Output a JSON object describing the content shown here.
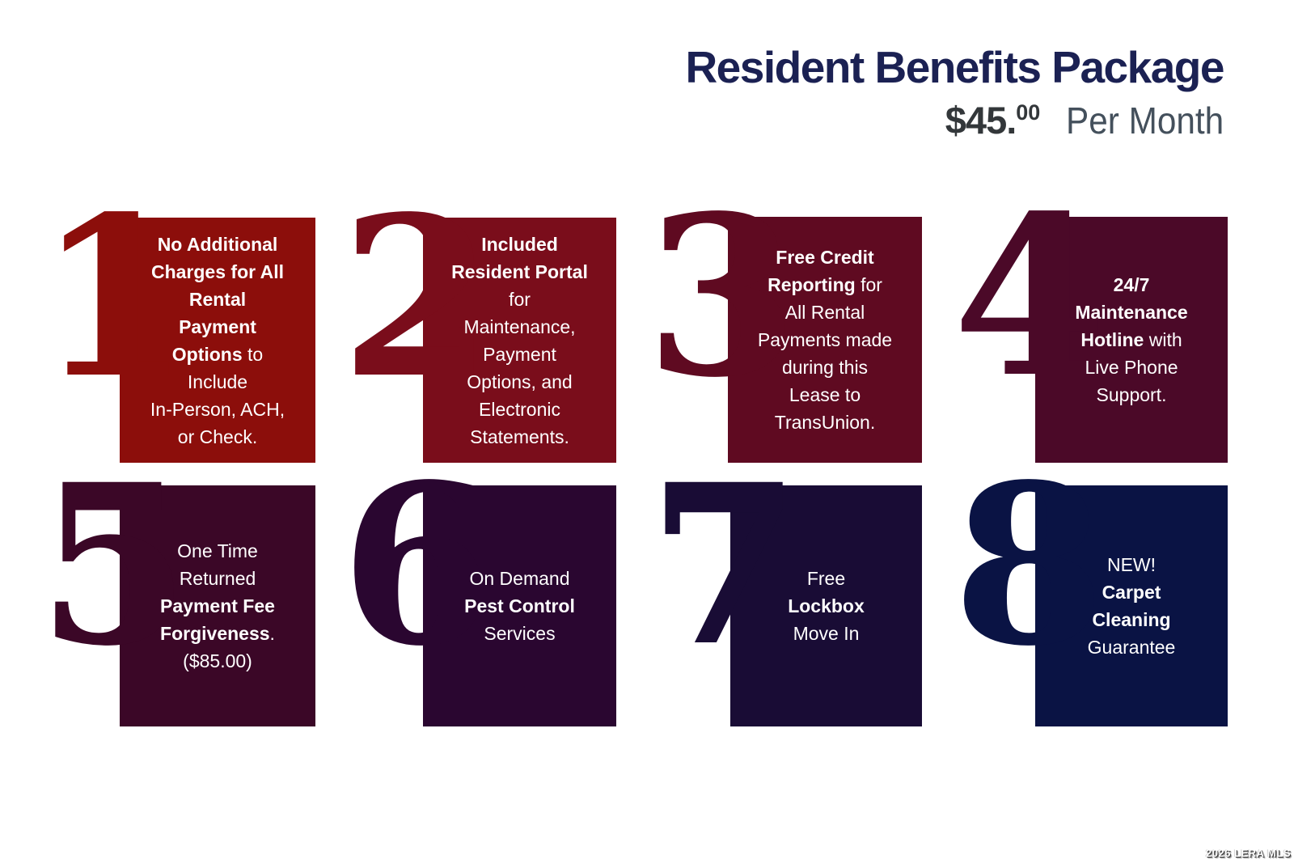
{
  "header": {
    "title": "Resident Benefits Package",
    "price_main": "$45.",
    "price_cents": "00",
    "price_suffix": "Per Month",
    "title_color": "#1b2153",
    "price_color": "#33373a",
    "suffix_color": "#44505c"
  },
  "watermark": {
    "text": "2026 LERA MLS"
  },
  "cards": [
    {
      "number": "1",
      "color": "#8c0e0b",
      "lines": [
        [
          {
            "t": "No Additional",
            "b": true
          }
        ],
        [
          {
            "t": "Charges for All",
            "b": true
          }
        ],
        [
          {
            "t": "Rental",
            "b": true
          }
        ],
        [
          {
            "t": "Payment",
            "b": true
          }
        ],
        [
          {
            "t": "Options",
            "b": true
          },
          {
            "t": " to",
            "b": false
          }
        ],
        [
          {
            "t": "Include",
            "b": false
          }
        ],
        [
          {
            "t": "In-Person, ACH,",
            "b": false
          }
        ],
        [
          {
            "t": "or Check.",
            "b": false
          }
        ]
      ]
    },
    {
      "number": "2",
      "color": "#7a0d1b",
      "lines": [
        [
          {
            "t": "Included",
            "b": true
          }
        ],
        [
          {
            "t": "Resident Portal",
            "b": true
          }
        ],
        [
          {
            "t": "for",
            "b": false
          }
        ],
        [
          {
            "t": "Maintenance,",
            "b": false
          }
        ],
        [
          {
            "t": "Payment",
            "b": false
          }
        ],
        [
          {
            "t": "Options, and",
            "b": false
          }
        ],
        [
          {
            "t": "Electronic",
            "b": false
          }
        ],
        [
          {
            "t": "Statements.",
            "b": false
          }
        ]
      ]
    },
    {
      "number": "3",
      "color": "#5f0a21",
      "lines": [
        [
          {
            "t": "Free Credit",
            "b": true
          }
        ],
        [
          {
            "t": "Reporting",
            "b": true
          },
          {
            "t": " for",
            "b": false
          }
        ],
        [
          {
            "t": "All Rental",
            "b": false
          }
        ],
        [
          {
            "t": "Payments made",
            "b": false
          }
        ],
        [
          {
            "t": "during this",
            "b": false
          }
        ],
        [
          {
            "t": "Lease to",
            "b": false
          }
        ],
        [
          {
            "t": "TransUnion.",
            "b": false
          }
        ]
      ]
    },
    {
      "number": "4",
      "color": "#4b0928",
      "lines": [
        [
          {
            "t": "24/7",
            "b": true
          }
        ],
        [
          {
            "t": "Maintenance",
            "b": true
          }
        ],
        [
          {
            "t": "Hotline",
            "b": true
          },
          {
            "t": " with",
            "b": false
          }
        ],
        [
          {
            "t": "Live Phone",
            "b": false
          }
        ],
        [
          {
            "t": "Support.",
            "b": false
          }
        ]
      ]
    },
    {
      "number": "5",
      "color": "#3b0727",
      "lines": [
        [
          {
            "t": "One Time",
            "b": false
          }
        ],
        [
          {
            "t": "Returned",
            "b": false
          }
        ],
        [
          {
            "t": "Payment Fee",
            "b": true
          }
        ],
        [
          {
            "t": "Forgiveness",
            "b": true
          },
          {
            "t": ".",
            "b": false
          }
        ],
        [
          {
            "t": "($85.00)",
            "b": false
          }
        ]
      ]
    },
    {
      "number": "6",
      "color": "#2a0630",
      "lines": [
        [
          {
            "t": "On Demand",
            "b": false
          }
        ],
        [
          {
            "t": "Pest Control",
            "b": true
          }
        ],
        [
          {
            "t": "Services",
            "b": false
          }
        ]
      ]
    },
    {
      "number": "7",
      "color": "#190c35",
      "lines": [
        [
          {
            "t": "Free",
            "b": false
          }
        ],
        [
          {
            "t": "Lockbox",
            "b": true
          }
        ],
        [
          {
            "t": "Move In",
            "b": false
          }
        ]
      ]
    },
    {
      "number": "8",
      "color": "#0a1344",
      "lines": [
        [
          {
            "t": "NEW!",
            "b": false
          }
        ],
        [
          {
            "t": "Carpet",
            "b": true
          }
        ],
        [
          {
            "t": "Cleaning",
            "b": true
          }
        ],
        [
          {
            "t": "Guarantee",
            "b": false
          }
        ]
      ]
    }
  ]
}
